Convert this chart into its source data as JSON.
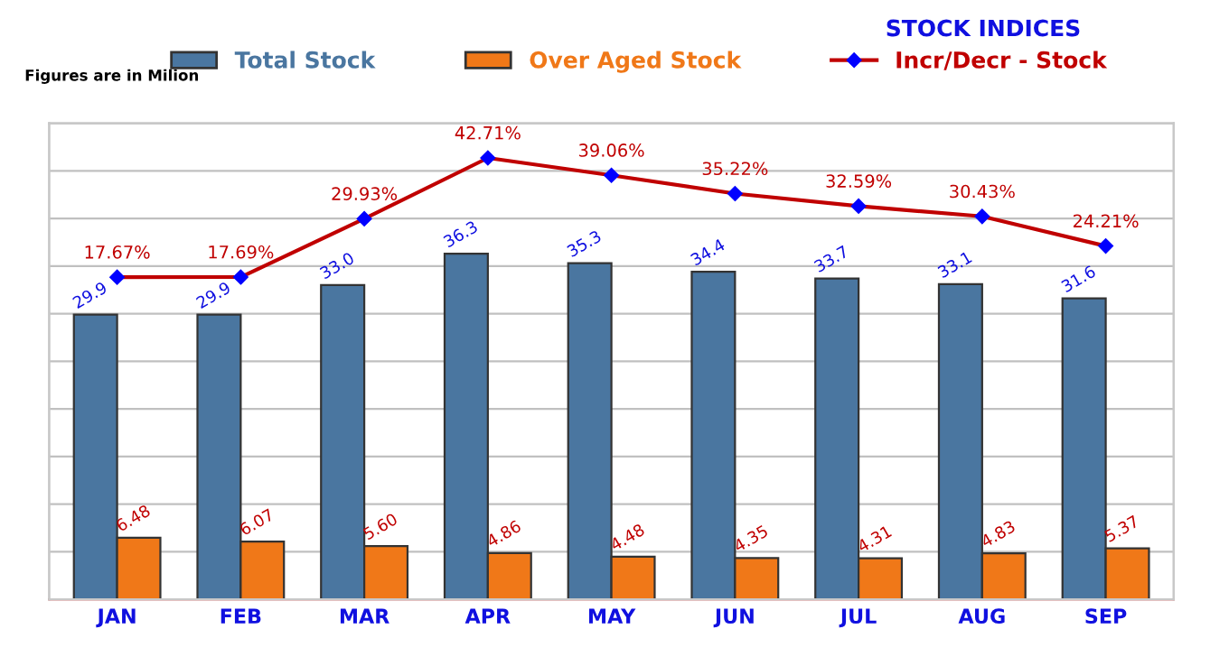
{
  "chart_data": {
    "type": "bar",
    "title": "STOCK INDICES",
    "subtitle": "Figures are in Milion",
    "categories": [
      "JAN",
      "FEB",
      "MAR",
      "APR",
      "MAY",
      "JUN",
      "JUL",
      "AUG",
      "SEP"
    ],
    "series": [
      {
        "name": "Total Stock",
        "color": "#4a76a0",
        "values": [
          29.9,
          29.9,
          33.0,
          36.3,
          35.3,
          34.4,
          33.7,
          33.1,
          31.6
        ],
        "value_labels": [
          "29.9",
          "29.9",
          "33.0",
          "36.3",
          "35.3",
          "34.4",
          "33.7",
          "33.1",
          "31.6"
        ]
      },
      {
        "name": "Over Aged Stock",
        "color": "#f07818",
        "values": [
          6.48,
          6.07,
          5.6,
          4.86,
          4.48,
          4.35,
          4.31,
          4.83,
          5.37
        ],
        "value_labels": [
          "6.48",
          "6.07",
          "5.60",
          "4.86",
          "4.48",
          "4.35",
          "4.31",
          "4.83",
          "5.37"
        ]
      },
      {
        "name": "Incr/Decr - Stock",
        "type": "line",
        "axis": "y2",
        "color": "#c00000",
        "marker": "diamond",
        "values": [
          17.67,
          17.69,
          29.93,
          42.71,
          39.06,
          35.22,
          32.59,
          30.43,
          24.21
        ],
        "value_labels": [
          "17.67%",
          "17.69%",
          "29.93%",
          "42.71%",
          "39.06%",
          "35.22%",
          "32.59%",
          "30.43%",
          "24.21%"
        ]
      }
    ],
    "ylim": [
      0,
      50
    ],
    "yticks": [
      {
        "value": 0,
        "label": null
      },
      {
        "value": 5,
        "label": null
      },
      {
        "value": 10,
        "label": null
      },
      {
        "value": 15,
        "label": null
      },
      {
        "value": 20,
        "label": null
      },
      {
        "value": 25,
        "label": null
      },
      {
        "value": 30,
        "label": null
      },
      {
        "value": 35,
        "label": null
      },
      {
        "value": 40,
        "label": null
      },
      {
        "value": 45,
        "label": null
      },
      {
        "value": 50,
        "label": null
      }
    ],
    "y2lim": [
      -50,
      50
    ],
    "tick_labels": "x",
    "grid": "y",
    "legend": "top"
  }
}
